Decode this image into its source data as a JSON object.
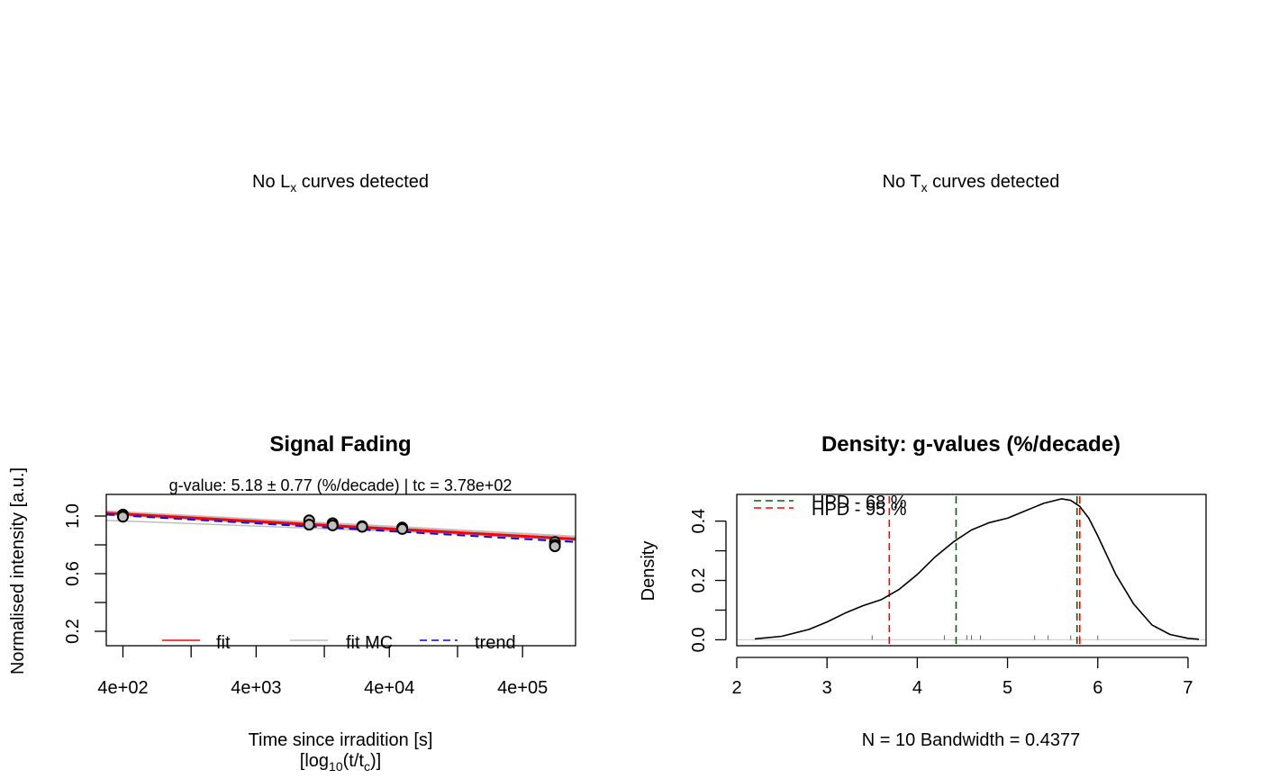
{
  "messages": {
    "lx_prefix": "No L",
    "lx_sub": "x",
    "lx_suffix": " curves detected",
    "tx_prefix": "No T",
    "tx_sub": "x",
    "tx_suffix": " curves detected"
  },
  "chart_data": [
    {
      "type": "scatter",
      "title": "Signal Fading",
      "subtitle": "g-value: 5.18 ± 0.77 (%/decade) | tc = 3.78e+02",
      "xlabel": "Time since irradition [s]",
      "xlabel2_parts": [
        "[log",
        "10",
        "(t/t",
        "c",
        ")]"
      ],
      "ylabel": "Normalised intensity [a.u.]",
      "x_scale": "log10",
      "xlim": [
        300,
        1000000
      ],
      "ylim": [
        0.1,
        1.15
      ],
      "x_ticks": [
        400,
        4000,
        40000,
        400000
      ],
      "x_tick_labels": [
        "4e+02",
        "4e+03",
        "4e+04",
        "4e+05"
      ],
      "x_minor_ticks": [
        1300,
        13000,
        130000
      ],
      "y_ticks": [
        1.0,
        0.6,
        0.2
      ],
      "y_minor_ticks": [
        0.8,
        0.4
      ],
      "y_tick_labels": [
        "1.0",
        "0.6",
        "0.2"
      ],
      "points": [
        {
          "x": 400,
          "y": 1.01
        },
        {
          "x": 400,
          "y": 1.0
        },
        {
          "x": 400,
          "y": 0.995
        },
        {
          "x": 10000,
          "y": 0.97
        },
        {
          "x": 10000,
          "y": 0.94
        },
        {
          "x": 15000,
          "y": 0.95
        },
        {
          "x": 15000,
          "y": 0.935
        },
        {
          "x": 25000,
          "y": 0.93
        },
        {
          "x": 25000,
          "y": 0.925
        },
        {
          "x": 50000,
          "y": 0.92
        },
        {
          "x": 50000,
          "y": 0.91
        },
        {
          "x": 700000,
          "y": 0.82
        },
        {
          "x": 700000,
          "y": 0.8
        },
        {
          "x": 700000,
          "y": 0.79
        }
      ],
      "fit": {
        "name": "fit",
        "color": "#ff0000",
        "x": [
          300,
          1000000
        ],
        "y": [
          1.02,
          0.84
        ]
      },
      "fit_mc": {
        "name": "fit MC",
        "color": "#bebebe",
        "lines": [
          {
            "x": [
              300,
              1000000
            ],
            "y": [
              1.03,
              0.855
            ]
          },
          {
            "x": [
              300,
              1000000
            ],
            "y": [
              1.01,
              0.83
            ]
          },
          {
            "x": [
              300,
              1000000
            ],
            "y": [
              0.97,
              0.845
            ]
          },
          {
            "x": [
              300,
              1000000
            ],
            "y": [
              1.035,
              0.86
            ]
          }
        ]
      },
      "trend": {
        "name": "trend",
        "color": "#0000ff",
        "x": [
          300,
          1000000
        ],
        "y": [
          1.01,
          0.82
        ]
      },
      "legend": [
        "fit",
        "fit MC",
        "trend"
      ],
      "legend_position": "bottom"
    },
    {
      "type": "line",
      "title": "Density: g-values (%/decade)",
      "xlabel": "N = 10   Bandwidth = 0.4377",
      "ylabel": "Density",
      "xlim": [
        2.0,
        7.2
      ],
      "ylim": [
        -0.02,
        0.49
      ],
      "x_ticks": [
        2,
        3,
        4,
        5,
        6,
        7
      ],
      "x_tick_labels": [
        "2",
        "3",
        "4",
        "5",
        "6",
        "7"
      ],
      "y_ticks": [
        0.0,
        0.2,
        0.4
      ],
      "y_minor_ticks": [
        0.1,
        0.3
      ],
      "y_tick_labels": [
        "0.0",
        "0.2",
        "0.4"
      ],
      "density": {
        "x": [
          2.2,
          2.5,
          2.8,
          3.0,
          3.2,
          3.4,
          3.6,
          3.8,
          4.0,
          4.2,
          4.4,
          4.6,
          4.8,
          5.0,
          5.2,
          5.4,
          5.6,
          5.7,
          5.8,
          5.9,
          6.0,
          6.2,
          6.4,
          6.6,
          6.8,
          7.0,
          7.12
        ],
        "y": [
          0.003,
          0.012,
          0.035,
          0.06,
          0.09,
          0.115,
          0.135,
          0.17,
          0.22,
          0.28,
          0.33,
          0.37,
          0.395,
          0.41,
          0.435,
          0.46,
          0.475,
          0.47,
          0.45,
          0.41,
          0.35,
          0.22,
          0.12,
          0.05,
          0.018,
          0.005,
          0.002
        ]
      },
      "rug": [
        3.5,
        4.3,
        4.55,
        4.6,
        4.7,
        5.3,
        5.45,
        5.7,
        5.8,
        6.0
      ],
      "hpd_68": {
        "name": "HPD - 68 %",
        "color": "#006400",
        "x": [
          4.43,
          5.77
        ]
      },
      "hpd_95": {
        "name": "HPD - 95 %",
        "color": "#ff0000",
        "x": [
          3.69,
          5.8
        ]
      },
      "legend_position": "top-left"
    }
  ]
}
